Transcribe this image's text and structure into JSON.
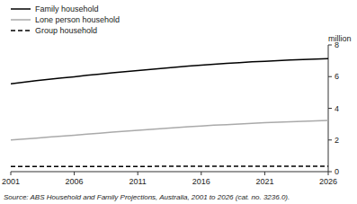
{
  "chart_data": {
    "type": "line",
    "y_label": "million",
    "source": "Source: ABS Household and Family Projections, Australia, 2001 to 2026 (cat. no. 3236.0).",
    "x": [
      2001,
      2002,
      2003,
      2004,
      2005,
      2006,
      2007,
      2008,
      2009,
      2010,
      2011,
      2012,
      2013,
      2014,
      2015,
      2016,
      2017,
      2018,
      2019,
      2020,
      2021,
      2022,
      2023,
      2024,
      2025,
      2026
    ],
    "series": [
      {
        "name": "Family household",
        "color": "#000000",
        "line_style": "solid",
        "values": [
          5.55,
          5.65,
          5.74,
          5.83,
          5.91,
          5.99,
          6.08,
          6.16,
          6.24,
          6.31,
          6.39,
          6.46,
          6.53,
          6.6,
          6.66,
          6.72,
          6.78,
          6.83,
          6.88,
          6.93,
          6.97,
          7.01,
          7.05,
          7.08,
          7.11,
          7.14
        ]
      },
      {
        "name": "Lone person household",
        "color": "#aaaaaa",
        "line_style": "solid",
        "values": [
          2.0,
          2.06,
          2.12,
          2.18,
          2.24,
          2.3,
          2.37,
          2.43,
          2.49,
          2.55,
          2.61,
          2.67,
          2.72,
          2.78,
          2.83,
          2.88,
          2.93,
          2.97,
          3.01,
          3.05,
          3.09,
          3.12,
          3.15,
          3.18,
          3.21,
          3.24
        ]
      },
      {
        "name": "Group household",
        "color": "#000000",
        "line_style": "dashed",
        "values": [
          0.32,
          0.32,
          0.33,
          0.33,
          0.33,
          0.33,
          0.33,
          0.33,
          0.33,
          0.33,
          0.33,
          0.33,
          0.34,
          0.34,
          0.34,
          0.34,
          0.34,
          0.34,
          0.34,
          0.34,
          0.34,
          0.34,
          0.34,
          0.34,
          0.34,
          0.34
        ]
      }
    ],
    "xlim": [
      2001,
      2026
    ],
    "xticks": [
      2001,
      2006,
      2011,
      2016,
      2021,
      2026
    ],
    "ylim": [
      0,
      8
    ],
    "yticks": [
      0,
      2,
      4,
      6,
      8
    ],
    "grid": false,
    "legend": "top-left"
  }
}
